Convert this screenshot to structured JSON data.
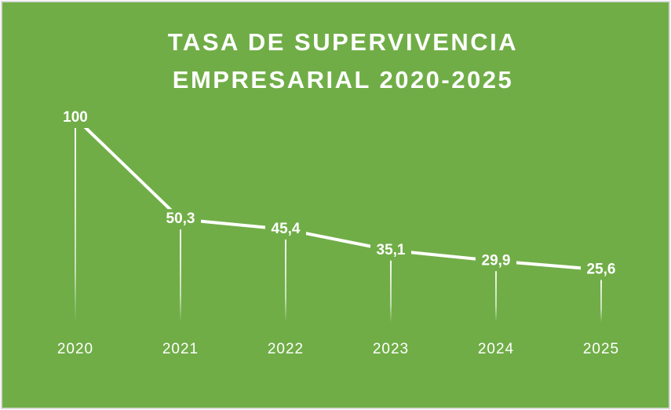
{
  "chart_data": {
    "type": "line",
    "title": "TASA DE SUPERVIVENCIA EMPRESARIAL 2020-2025",
    "categories": [
      "2020",
      "2021",
      "2022",
      "2023",
      "2024",
      "2025"
    ],
    "values": [
      100,
      50.3,
      45.4,
      35.1,
      29.9,
      25.6
    ],
    "value_labels": [
      "100",
      "50,3",
      "45,4",
      "35,1",
      "29,9",
      "25,6"
    ],
    "color": "#ffffff",
    "background": "#70ad47",
    "ylim": [
      0,
      100
    ],
    "drop_lines": true
  }
}
